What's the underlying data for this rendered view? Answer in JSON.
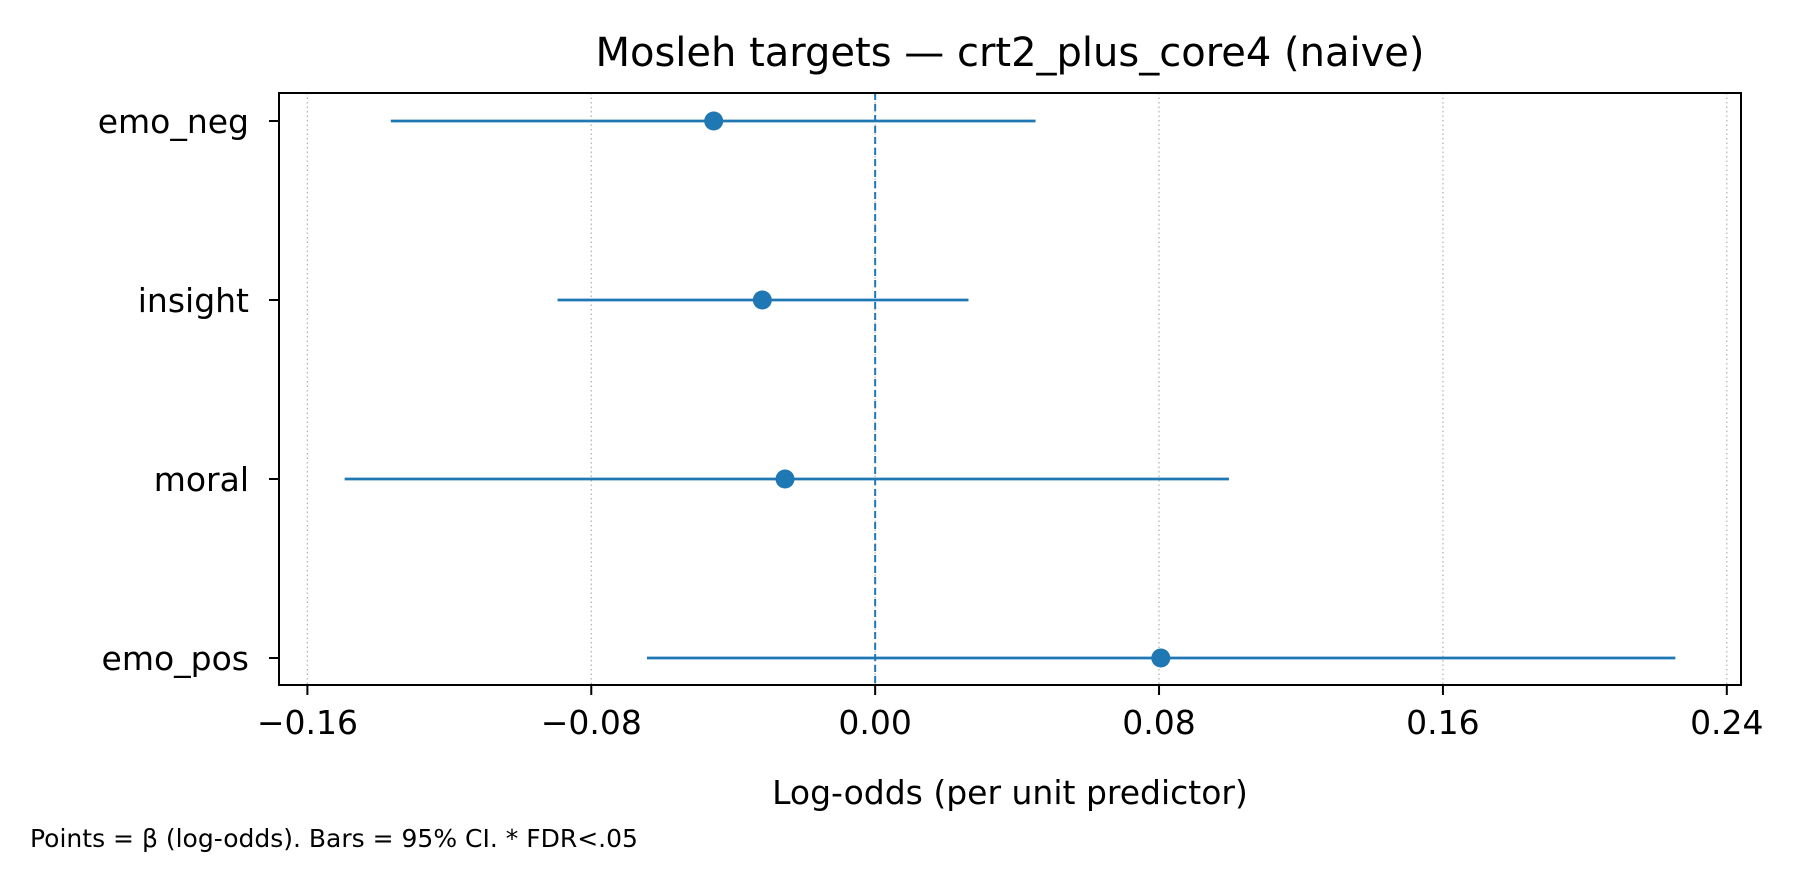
{
  "chart_data": {
    "type": "scatter",
    "subtype": "forest-plot",
    "title": "Mosleh targets — crt2_plus_core4 (naive)",
    "xlabel": "Log-odds (per unit predictor)",
    "ylabel": "",
    "xlim": [
      -0.168,
      0.244
    ],
    "xticks": [
      -0.16,
      -0.08,
      0.0,
      0.08,
      0.16,
      0.24
    ],
    "xtick_labels": [
      "−0.16",
      "−0.08",
      "0.00",
      "0.08",
      "0.16",
      "0.24"
    ],
    "categories": [
      "emo_neg",
      "insight",
      "moral",
      "emo_pos"
    ],
    "estimates": [
      -0.0455,
      -0.0318,
      -0.0254,
      0.0805
    ],
    "ci_low": [
      -0.1365,
      -0.0895,
      -0.1495,
      -0.0643
    ],
    "ci_high": [
      0.0452,
      0.0263,
      0.0997,
      0.2255
    ],
    "reference_line": 0,
    "grid": "x, dotted",
    "color": "#1f77b4",
    "caption": "Points = β (log-odds). Bars = 95% CI. * FDR<.05"
  }
}
